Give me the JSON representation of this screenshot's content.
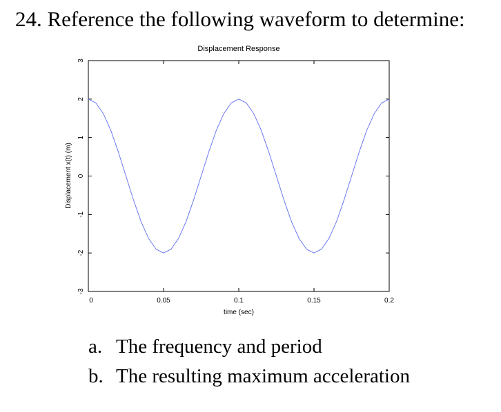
{
  "question": {
    "text": "24. Reference the following waveform to determine:"
  },
  "parts": [
    {
      "letter": "a.",
      "text": "The frequency and period"
    },
    {
      "letter": "b.",
      "text": "The resulting maximum acceleration"
    }
  ],
  "chart_data": {
    "type": "line",
    "title": "Displacement Response",
    "xlabel": "time (sec)",
    "ylabel": "Displacement x(t) (m)",
    "xlim": [
      0,
      0.2
    ],
    "ylim": [
      -3,
      3
    ],
    "xticks": [
      0,
      0.05,
      0.1,
      0.15,
      0.2
    ],
    "xtick_labels": [
      "0",
      "0.05",
      "0.1",
      "0.15",
      "0.2"
    ],
    "yticks": [
      -3,
      -2,
      -1,
      0,
      1,
      2,
      3
    ],
    "ytick_labels": [
      "-3",
      "-2",
      "-1",
      "0",
      "1",
      "2",
      "3"
    ],
    "grid": false,
    "series_color": "#6b78f0",
    "series": [
      {
        "x": [
          0,
          0.005,
          0.01,
          0.015,
          0.02,
          0.025,
          0.03,
          0.035,
          0.04,
          0.045,
          0.05,
          0.055,
          0.06,
          0.065,
          0.07,
          0.075,
          0.08,
          0.085,
          0.09,
          0.095,
          0.1,
          0.105,
          0.11,
          0.115,
          0.12,
          0.125,
          0.13,
          0.135,
          0.14,
          0.145,
          0.15,
          0.155,
          0.16,
          0.165,
          0.17,
          0.175,
          0.18,
          0.185,
          0.19,
          0.195,
          0.2
        ],
        "y": [
          2,
          1.9,
          1.62,
          1.18,
          0.62,
          0,
          -0.62,
          -1.18,
          -1.62,
          -1.9,
          -2,
          -1.9,
          -1.62,
          -1.18,
          -0.62,
          0,
          0.62,
          1.18,
          1.62,
          1.9,
          2,
          1.9,
          1.62,
          1.18,
          0.62,
          0,
          -0.62,
          -1.18,
          -1.62,
          -1.9,
          -2,
          -1.9,
          -1.62,
          -1.18,
          -0.62,
          0,
          0.62,
          1.18,
          1.62,
          1.9,
          2
        ]
      }
    ]
  }
}
